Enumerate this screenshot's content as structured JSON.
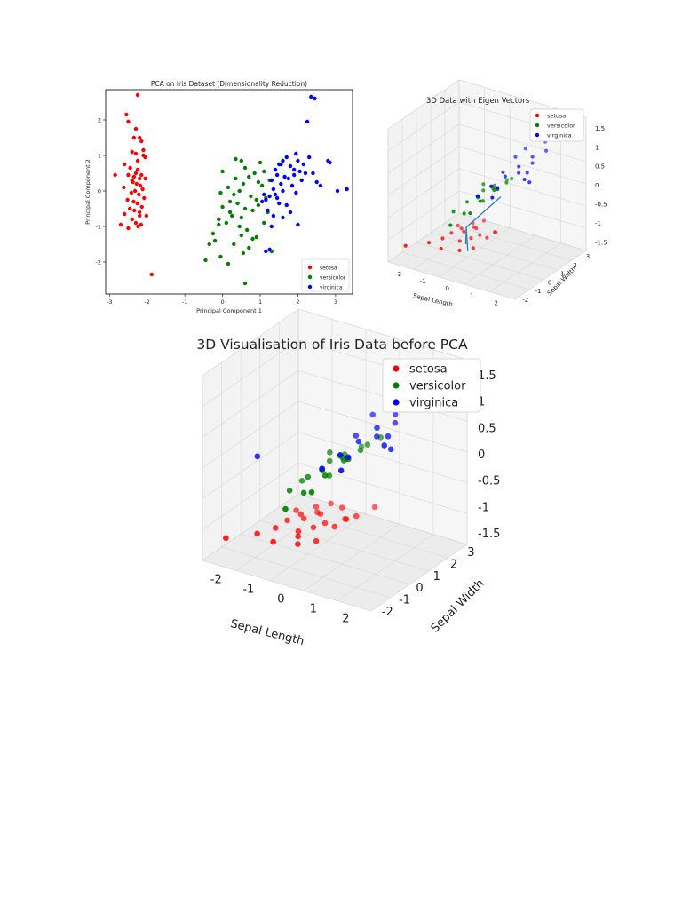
{
  "chart_data": [
    {
      "type": "scatter",
      "title": "PCA on Iris Dataset (Dimensionality Reduction)",
      "xlabel": "Principal Component 1",
      "ylabel": "Principal Component 2",
      "xlim": [
        -3.1,
        3.45
      ],
      "ylim": [
        -2.9,
        2.85
      ],
      "xticks": [
        -3,
        -2,
        -1,
        0,
        1,
        2,
        3
      ],
      "yticks": [
        -2,
        -1,
        0,
        1,
        2
      ],
      "legend": "lower-right",
      "series": [
        {
          "name": "setosa",
          "color": "#ff0000",
          "x": [
            -2.25,
            -2.55,
            -2.5,
            -2.35,
            -2.2,
            -2.15,
            -2.4,
            -2.3,
            -2.1,
            -2.05,
            -2.6,
            -2.45,
            -2.25,
            -2.3,
            -2.15,
            -2.5,
            -2.35,
            -2.2,
            -2.05,
            -2.4,
            -2.28,
            -2.18,
            -2.62,
            -2.12,
            -2.32,
            -2.42,
            -2.22,
            -2.08,
            -2.52,
            -2.36,
            -2.26,
            -2.14,
            -2.46,
            -2.34,
            -2.2,
            -2.6,
            -2.02,
            -2.4,
            -2.3,
            -2.16,
            -2.5,
            -2.24,
            -2.1,
            -2.85,
            -1.88,
            -2.3,
            -2.2,
            -2.7,
            -2.25,
            -2.38
          ],
          "y": [
            2.7,
            2.15,
            1.95,
            1.5,
            1.5,
            1.4,
            1.1,
            1.05,
            1.0,
            0.95,
            0.75,
            0.65,
            0.6,
            0.5,
            0.45,
            0.45,
            0.4,
            0.35,
            0.35,
            0.3,
            0.2,
            0.15,
            0.1,
            0.05,
            0.0,
            -0.05,
            -0.1,
            -0.2,
            -0.25,
            -0.3,
            -0.35,
            -0.45,
            -0.5,
            -0.55,
            -0.6,
            -0.65,
            -0.7,
            -0.8,
            -0.9,
            -0.95,
            -1.05,
            -1.0,
            1.15,
            0.45,
            -2.35,
            1.75,
            -0.7,
            -0.95,
            0.85,
            0.25
          ]
        },
        {
          "name": "versicolor",
          "color": "#008000",
          "x": [
            0.5,
            0.6,
            1.0,
            1.1,
            0.85,
            0.7,
            0.95,
            1.25,
            1.05,
            0.35,
            0.55,
            0.15,
            -0.05,
            0.3,
            0.45,
            0.75,
            0.9,
            1.15,
            0.2,
            0.4,
            0.0,
            0.6,
            0.8,
            1.2,
            0.25,
            0.5,
            -0.1,
            0.1,
            0.45,
            0.65,
            -0.25,
            -0.2,
            0.3,
            0.7,
            0.55,
            -0.05,
            1.3,
            0.9,
            -0.35,
            -0.45,
            0.15,
            0.6,
            0.8,
            1.1,
            0.35,
            0.2,
            -0.1,
            0.5,
            0.95,
            0.0
          ],
          "y": [
            0.85,
            0.65,
            0.8,
            0.55,
            0.5,
            0.4,
            0.25,
            0.3,
            0.15,
            0.35,
            0.2,
            0.1,
            -0.05,
            -0.1,
            0.0,
            -0.15,
            -0.25,
            -0.2,
            -0.3,
            -0.35,
            -0.45,
            -0.5,
            -0.55,
            -0.6,
            -0.7,
            -0.75,
            -0.8,
            -0.9,
            -1.0,
            -1.1,
            -1.2,
            -1.4,
            -1.5,
            -1.6,
            -1.75,
            -1.85,
            -1.7,
            -1.3,
            -1.5,
            -1.95,
            -2.05,
            -2.6,
            -1.35,
            -0.9,
            0.9,
            -0.6,
            -0.95,
            -1.25,
            -0.4,
            0.55
          ]
        },
        {
          "name": "virginica",
          "color": "#0000ff",
          "x": [
            2.35,
            2.45,
            2.25,
            1.95,
            2.3,
            2.8,
            2.85,
            2.0,
            2.15,
            1.7,
            1.6,
            1.8,
            1.5,
            2.05,
            2.2,
            1.9,
            1.65,
            1.45,
            1.3,
            1.75,
            1.55,
            1.85,
            1.35,
            1.6,
            2.1,
            2.5,
            1.4,
            1.25,
            1.95,
            1.15,
            1.05,
            1.5,
            1.7,
            1.8,
            1.2,
            1.35,
            2.4,
            3.3,
            3.05,
            2.6,
            1.1,
            1.45,
            1.3,
            1.6,
            2.0,
            1.25,
            1.15,
            1.4,
            1.55,
            1.9
          ],
          "y": [
            2.65,
            2.6,
            1.95,
            1.05,
            0.95,
            0.85,
            0.8,
            0.85,
            0.75,
            0.95,
            0.85,
            0.7,
            0.75,
            0.55,
            0.5,
            0.45,
            0.4,
            0.45,
            0.3,
            0.35,
            0.2,
            0.15,
            0.05,
            0.0,
            0.3,
            0.25,
            -0.1,
            -0.15,
            -0.05,
            -0.25,
            -0.3,
            -0.35,
            -0.4,
            -0.6,
            -0.55,
            -0.7,
            0.5,
            0.05,
            0.0,
            0.15,
            -0.1,
            -0.2,
            -1.0,
            -0.75,
            -0.95,
            -1.65,
            -1.7,
            0.6,
            0.75,
            0.6
          ]
        }
      ]
    },
    {
      "type": "scatter",
      "title": "3D Data with Eigen Vectors",
      "xlabel": "Sepal Length",
      "ylabel": "Sepal Width",
      "xticks": [
        -2,
        -1,
        0,
        1,
        2
      ],
      "yticks": [
        -2,
        -1,
        0,
        1,
        2,
        3
      ],
      "zticks": [
        1.5,
        1.0,
        0.5,
        0.0,
        -0.5,
        -1.0,
        -1.5
      ],
      "legend": "top-right",
      "series": [
        {
          "name": "setosa",
          "color": "#ff0000",
          "x": [
            -2.2,
            -1.5,
            -1.2,
            -0.9,
            -1.1,
            -0.6,
            -0.8,
            -0.3,
            -0.5,
            -1.0,
            -0.7,
            -0.4,
            -0.2,
            0.0,
            0.2,
            -1.3,
            -0.9,
            -0.6,
            0.1,
            0.3
          ],
          "y": [
            -1.5,
            -1.0,
            -0.5,
            -1.2,
            0.0,
            -0.3,
            0.4,
            -0.9,
            0.8,
            0.6,
            1.0,
            0.2,
            0.5,
            -0.4,
            0.3,
            0.9,
            1.3,
            1.6,
            1.1,
            0.8
          ],
          "z": [
            -1.4,
            -1.3,
            -1.25,
            -1.3,
            -1.2,
            -1.25,
            -1.2,
            -1.3,
            -1.15,
            -1.2,
            -1.2,
            -1.25,
            -1.2,
            -1.3,
            -1.15,
            -1.25,
            -1.2,
            -1.15,
            -1.2,
            -1.1
          ]
        },
        {
          "name": "versicolor",
          "color": "#008000",
          "x": [
            -0.5,
            -0.2,
            0.1,
            0.4,
            0.6,
            -0.3,
            0.0,
            0.3,
            0.8,
            1.0,
            0.5,
            0.2,
            -0.1,
            0.7,
            0.9,
            0.4,
            1.1,
            0.6,
            0.3,
            0.0
          ],
          "y": [
            -1.0,
            -0.5,
            0.2,
            -0.8,
            0.0,
            0.5,
            1.0,
            0.7,
            -0.3,
            0.3,
            1.3,
            -1.5,
            -2.0,
            -1.2,
            0.9,
            0.6,
            -0.6,
            -1.8,
            -0.2,
            0.4
          ],
          "z": [
            -0.3,
            -0.1,
            0.1,
            0.2,
            0.3,
            -0.2,
            0.0,
            0.15,
            0.35,
            0.45,
            0.2,
            -0.1,
            -0.35,
            0.25,
            0.4,
            0.1,
            0.5,
            0.05,
            -0.05,
            0.2
          ]
        },
        {
          "name": "virginica",
          "color": "#0000ff",
          "x": [
            0.5,
            0.8,
            1.1,
            1.4,
            1.7,
            2.0,
            2.2,
            0.9,
            1.2,
            1.5,
            1.8,
            2.1,
            0.7,
            1.0,
            1.3,
            1.6,
            1.9,
            2.3,
            2.4,
            2.5
          ],
          "y": [
            -1.0,
            -0.5,
            0.0,
            0.5,
            1.0,
            1.5,
            -0.2,
            1.2,
            -0.8,
            0.3,
            0.8,
            -0.4,
            0.6,
            1.8,
            -1.4,
            2.2,
            0.2,
            2.6,
            3.0,
            2.8
          ],
          "z": [
            0.3,
            0.5,
            0.7,
            0.9,
            1.1,
            1.2,
            0.8,
            0.9,
            0.6,
            0.8,
            1.0,
            0.9,
            0.6,
            1.0,
            0.5,
            1.2,
            0.9,
            1.4,
            1.5,
            1.6
          ]
        }
      ]
    },
    {
      "type": "scatter",
      "title": "3D Visualisation of Iris Data before PCA",
      "xlabel": "Sepal Length",
      "ylabel": "Sepal Width",
      "xticks": [
        -2,
        -1,
        0,
        1,
        2
      ],
      "yticks": [
        -2,
        -1,
        0,
        1,
        2,
        3
      ],
      "zticks": [
        1.5,
        1.0,
        0.5,
        0.0,
        -0.5,
        -1.0,
        -1.5
      ],
      "legend": "top-right",
      "series": [
        {
          "name": "setosa",
          "color": "#ff0000",
          "x": [
            -2.2,
            -1.5,
            -1.2,
            -0.9,
            -1.1,
            -0.6,
            -0.8,
            -0.3,
            -0.5,
            -1.0,
            -0.7,
            -0.4,
            -0.2,
            0.0,
            0.2,
            -1.3,
            -0.9,
            -0.6,
            0.1,
            0.3,
            -0.45,
            -0.15,
            0.5,
            0.7
          ],
          "y": [
            -1.5,
            -1.0,
            -0.5,
            -1.2,
            0.0,
            -0.3,
            0.4,
            -0.9,
            0.8,
            0.6,
            1.0,
            0.2,
            0.5,
            -0.4,
            0.3,
            0.9,
            1.3,
            1.6,
            1.1,
            0.8,
            -0.6,
            1.4,
            1.0,
            1.7
          ],
          "z": [
            -1.4,
            -1.3,
            -1.25,
            -1.3,
            -1.2,
            -1.25,
            -1.2,
            -1.3,
            -1.15,
            -1.2,
            -1.2,
            -1.25,
            -1.2,
            -1.3,
            -1.15,
            -1.25,
            -1.2,
            -1.15,
            -1.2,
            -1.1,
            -1.25,
            -1.1,
            -1.05,
            -1.0
          ]
        },
        {
          "name": "versicolor",
          "color": "#008000",
          "x": [
            -0.5,
            -0.2,
            0.1,
            0.4,
            0.6,
            -0.3,
            0.0,
            0.3,
            0.8,
            1.0,
            0.5,
            0.2,
            -0.1,
            0.7,
            0.9,
            0.4,
            1.1,
            0.6,
            0.3,
            0.0,
            -0.7,
            1.2
          ],
          "y": [
            -1.0,
            -0.5,
            0.2,
            -0.8,
            0.0,
            0.5,
            1.0,
            0.7,
            -0.3,
            0.3,
            1.3,
            -1.5,
            -2.0,
            -1.2,
            0.9,
            0.6,
            -0.6,
            -1.8,
            -0.2,
            0.4,
            0.1,
            1.1
          ],
          "z": [
            -0.3,
            -0.1,
            0.1,
            0.2,
            0.3,
            -0.2,
            0.0,
            0.15,
            0.35,
            0.45,
            0.2,
            -0.1,
            -0.35,
            0.25,
            0.4,
            0.1,
            0.5,
            0.05,
            -0.05,
            0.2,
            -0.4,
            0.55
          ]
        },
        {
          "name": "virginica",
          "color": "#0000ff",
          "x": [
            0.5,
            0.8,
            1.1,
            1.4,
            1.7,
            2.0,
            2.2,
            0.9,
            1.2,
            1.5,
            1.8,
            2.1,
            0.7,
            1.0,
            1.3,
            1.6,
            1.9,
            2.3,
            2.4,
            2.5,
            -1.6
          ],
          "y": [
            -1.0,
            -0.5,
            0.0,
            0.5,
            1.0,
            1.5,
            -0.2,
            1.2,
            -0.8,
            0.3,
            0.8,
            -0.4,
            0.6,
            1.8,
            -1.4,
            2.2,
            0.2,
            2.6,
            3.0,
            2.8,
            -0.8
          ],
          "z": [
            0.3,
            0.5,
            0.7,
            0.9,
            1.1,
            1.2,
            0.8,
            0.9,
            0.6,
            0.8,
            1.0,
            0.9,
            0.6,
            1.0,
            0.5,
            1.2,
            0.9,
            1.4,
            1.5,
            1.6,
            0.1
          ]
        }
      ]
    }
  ]
}
